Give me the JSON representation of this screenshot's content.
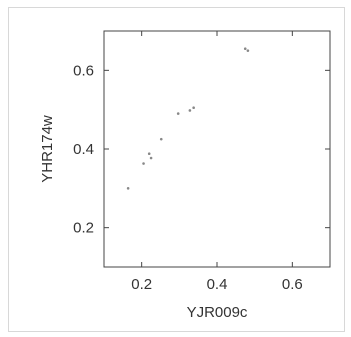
{
  "chart_data": {
    "type": "scatter",
    "title": "",
    "xlabel": "YJR009c",
    "ylabel": "YHR174w",
    "xlim": [
      0.1,
      0.7
    ],
    "ylim": [
      0.1,
      0.7
    ],
    "x_ticks": [
      {
        "value": 0.2,
        "label": "0.2"
      },
      {
        "value": 0.4,
        "label": "0.4"
      },
      {
        "value": 0.6,
        "label": "0.6"
      }
    ],
    "y_ticks": [
      {
        "value": 0.2,
        "label": "0.2"
      },
      {
        "value": 0.4,
        "label": "0.4"
      },
      {
        "value": 0.6,
        "label": "0.6"
      }
    ],
    "grid": false,
    "legend": "none",
    "colors": {
      "points": "#888888",
      "axes": "#444444"
    },
    "points": [
      {
        "x": 0.164,
        "y": 0.3
      },
      {
        "x": 0.205,
        "y": 0.363
      },
      {
        "x": 0.22,
        "y": 0.388
      },
      {
        "x": 0.225,
        "y": 0.377
      },
      {
        "x": 0.252,
        "y": 0.425
      },
      {
        "x": 0.297,
        "y": 0.49
      },
      {
        "x": 0.328,
        "y": 0.498
      },
      {
        "x": 0.338,
        "y": 0.505
      },
      {
        "x": 0.475,
        "y": 0.655
      },
      {
        "x": 0.482,
        "y": 0.65
      }
    ]
  }
}
